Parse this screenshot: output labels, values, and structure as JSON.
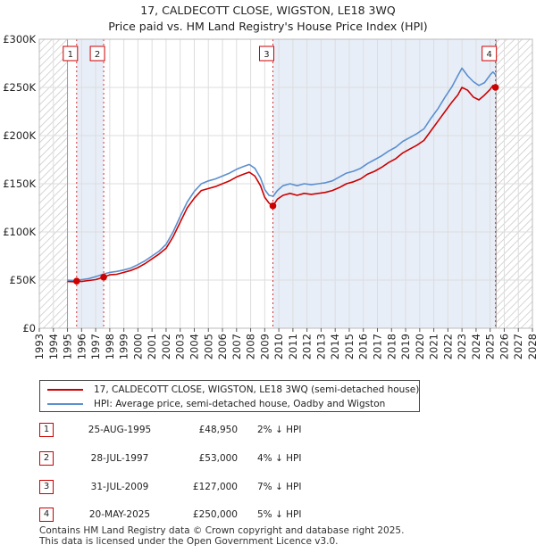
{
  "header": {
    "title_line1": "17, CALDECOTT CLOSE, WIGSTON, LE18 3WQ",
    "title_line2": "Price paid vs. HM Land Registry's House Price Index (HPI)"
  },
  "colors": {
    "price_line": "#cc0000",
    "hpi_line": "#5b8fcf",
    "band_fill": "#e8eef8",
    "hatch": "#c8c8c8",
    "grid": "#dddddd",
    "sale_marker": "#cc0000"
  },
  "chart_data": {
    "type": "line",
    "xlim": [
      1993,
      2028
    ],
    "ylim": [
      0,
      300000
    ],
    "y_ticks": [
      0,
      50000,
      100000,
      150000,
      200000,
      250000,
      300000
    ],
    "y_tick_labels": [
      "£0",
      "£50K",
      "£100K",
      "£150K",
      "£200K",
      "£250K",
      "£300K"
    ],
    "x_ticks": [
      1993,
      1994,
      1995,
      1996,
      1997,
      1998,
      1999,
      2000,
      2001,
      2002,
      2003,
      2004,
      2005,
      2006,
      2007,
      2008,
      2009,
      2010,
      2011,
      2012,
      2013,
      2014,
      2015,
      2016,
      2017,
      2018,
      2019,
      2020,
      2021,
      2022,
      2023,
      2024,
      2025,
      2026,
      2027,
      2028
    ],
    "data_range": [
      1995.0,
      2025.42
    ],
    "grid": true,
    "sale_bands": [
      [
        1995.65,
        1997.57
      ],
      [
        2009.58,
        2025.38
      ]
    ],
    "series": [
      {
        "name": "17, CALDECOTT CLOSE, WIGSTON, LE18 3WQ (semi-detached house)",
        "color": "#cc0000",
        "points": [
          [
            1995.0,
            48500
          ],
          [
            1995.5,
            48200
          ],
          [
            1995.65,
            48950
          ],
          [
            1996.0,
            48500
          ],
          [
            1996.5,
            49500
          ],
          [
            1997.0,
            50500
          ],
          [
            1997.57,
            53000
          ],
          [
            1998.0,
            55500
          ],
          [
            1998.5,
            56000
          ],
          [
            1999.0,
            58000
          ],
          [
            1999.5,
            60000
          ],
          [
            2000.0,
            63000
          ],
          [
            2000.5,
            67000
          ],
          [
            2001.0,
            72000
          ],
          [
            2001.5,
            77000
          ],
          [
            2002.0,
            83000
          ],
          [
            2002.5,
            95000
          ],
          [
            2003.0,
            110000
          ],
          [
            2003.5,
            125000
          ],
          [
            2004.0,
            135000
          ],
          [
            2004.5,
            143000
          ],
          [
            2005.0,
            145000
          ],
          [
            2005.5,
            147000
          ],
          [
            2006.0,
            150000
          ],
          [
            2006.5,
            153000
          ],
          [
            2007.0,
            157000
          ],
          [
            2007.5,
            160000
          ],
          [
            2007.9,
            162000
          ],
          [
            2008.3,
            158000
          ],
          [
            2008.7,
            148000
          ],
          [
            2009.0,
            136000
          ],
          [
            2009.3,
            130000
          ],
          [
            2009.58,
            127000
          ],
          [
            2009.9,
            134000
          ],
          [
            2010.3,
            138000
          ],
          [
            2010.8,
            140000
          ],
          [
            2011.3,
            138000
          ],
          [
            2011.8,
            140000
          ],
          [
            2012.3,
            139000
          ],
          [
            2012.8,
            140000
          ],
          [
            2013.3,
            141000
          ],
          [
            2013.8,
            143000
          ],
          [
            2014.3,
            146000
          ],
          [
            2014.8,
            150000
          ],
          [
            2015.3,
            152000
          ],
          [
            2015.8,
            155000
          ],
          [
            2016.3,
            160000
          ],
          [
            2016.8,
            163000
          ],
          [
            2017.3,
            167000
          ],
          [
            2017.8,
            172000
          ],
          [
            2018.3,
            176000
          ],
          [
            2018.8,
            182000
          ],
          [
            2019.3,
            186000
          ],
          [
            2019.8,
            190000
          ],
          [
            2020.3,
            195000
          ],
          [
            2020.8,
            205000
          ],
          [
            2021.3,
            215000
          ],
          [
            2021.8,
            225000
          ],
          [
            2022.3,
            235000
          ],
          [
            2022.7,
            242000
          ],
          [
            2023.0,
            250000
          ],
          [
            2023.4,
            247000
          ],
          [
            2023.8,
            240000
          ],
          [
            2024.2,
            237000
          ],
          [
            2024.6,
            242000
          ],
          [
            2025.0,
            248000
          ],
          [
            2025.2,
            252000
          ],
          [
            2025.38,
            250000
          ]
        ]
      },
      {
        "name": "HPI: Average price, semi-detached house, Oadby and Wigston",
        "color": "#5b8fcf",
        "points": [
          [
            1995.0,
            50000
          ],
          [
            1995.5,
            49500
          ],
          [
            1996.0,
            50500
          ],
          [
            1996.5,
            51500
          ],
          [
            1997.0,
            53500
          ],
          [
            1997.5,
            56000
          ],
          [
            1998.0,
            58000
          ],
          [
            1998.5,
            59000
          ],
          [
            1999.0,
            60500
          ],
          [
            1999.5,
            62500
          ],
          [
            2000.0,
            66000
          ],
          [
            2000.5,
            70000
          ],
          [
            2001.0,
            75000
          ],
          [
            2001.5,
            80000
          ],
          [
            2002.0,
            87000
          ],
          [
            2002.5,
            100000
          ],
          [
            2003.0,
            116000
          ],
          [
            2003.5,
            131000
          ],
          [
            2004.0,
            142000
          ],
          [
            2004.5,
            150000
          ],
          [
            2005.0,
            153000
          ],
          [
            2005.5,
            155000
          ],
          [
            2006.0,
            158000
          ],
          [
            2006.5,
            161000
          ],
          [
            2007.0,
            165000
          ],
          [
            2007.5,
            168000
          ],
          [
            2007.9,
            170000
          ],
          [
            2008.3,
            166000
          ],
          [
            2008.7,
            156000
          ],
          [
            2009.0,
            144000
          ],
          [
            2009.3,
            138000
          ],
          [
            2009.6,
            137000
          ],
          [
            2009.9,
            143000
          ],
          [
            2010.3,
            148000
          ],
          [
            2010.8,
            150000
          ],
          [
            2011.3,
            148000
          ],
          [
            2011.8,
            150000
          ],
          [
            2012.3,
            149000
          ],
          [
            2012.8,
            150000
          ],
          [
            2013.3,
            151000
          ],
          [
            2013.8,
            153000
          ],
          [
            2014.3,
            157000
          ],
          [
            2014.8,
            161000
          ],
          [
            2015.3,
            163000
          ],
          [
            2015.8,
            166000
          ],
          [
            2016.3,
            171000
          ],
          [
            2016.8,
            175000
          ],
          [
            2017.3,
            179000
          ],
          [
            2017.8,
            184000
          ],
          [
            2018.3,
            188000
          ],
          [
            2018.8,
            194000
          ],
          [
            2019.3,
            198000
          ],
          [
            2019.8,
            202000
          ],
          [
            2020.3,
            207000
          ],
          [
            2020.8,
            218000
          ],
          [
            2021.3,
            228000
          ],
          [
            2021.8,
            240000
          ],
          [
            2022.3,
            251000
          ],
          [
            2022.7,
            262000
          ],
          [
            2023.0,
            270000
          ],
          [
            2023.4,
            262000
          ],
          [
            2023.8,
            256000
          ],
          [
            2024.2,
            252000
          ],
          [
            2024.6,
            255000
          ],
          [
            2025.0,
            263000
          ],
          [
            2025.2,
            266000
          ],
          [
            2025.4,
            263000
          ]
        ]
      }
    ],
    "sales": [
      {
        "label": "1",
        "x": 1995.65,
        "price": 48950
      },
      {
        "label": "2",
        "x": 1997.57,
        "price": 53000
      },
      {
        "label": "3",
        "x": 2009.58,
        "price": 127000
      },
      {
        "label": "4",
        "x": 2025.38,
        "price": 250000
      }
    ]
  },
  "legend": {
    "price_label": "17, CALDECOTT CLOSE, WIGSTON, LE18 3WQ (semi-detached house)",
    "hpi_label": "HPI: Average price, semi-detached house, Oadby and Wigston"
  },
  "sales_table": [
    {
      "num": "1",
      "date": "25-AUG-1995",
      "price": "£48,950",
      "hpi": "2% ↓ HPI"
    },
    {
      "num": "2",
      "date": "28-JUL-1997",
      "price": "£53,000",
      "hpi": "4% ↓ HPI"
    },
    {
      "num": "3",
      "date": "31-JUL-2009",
      "price": "£127,000",
      "hpi": "7% ↓ HPI"
    },
    {
      "num": "4",
      "date": "20-MAY-2025",
      "price": "£250,000",
      "hpi": "5% ↓ HPI"
    }
  ],
  "footer": {
    "line1": "Contains HM Land Registry data © Crown copyright and database right 2025.",
    "line2": "This data is licensed under the Open Government Licence v3.0."
  }
}
